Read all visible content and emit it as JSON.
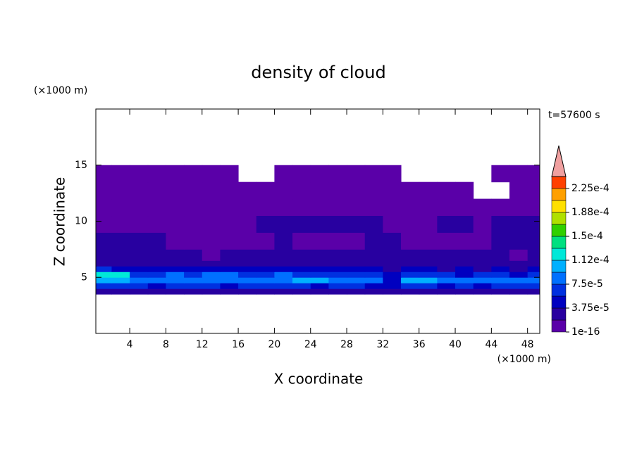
{
  "chart_data": {
    "type": "contour",
    "title": "density of cloud",
    "time_label": "t=57600 s",
    "xlabel": "X coordinate",
    "ylabel": "Z coordinate",
    "x_unit": "(×1000 m)",
    "y_unit": "(×1000 m)",
    "xlim": [
      0.25,
      49.35
    ],
    "ylim": [
      0,
      20
    ],
    "xticks": [
      4,
      8,
      12,
      16,
      20,
      24,
      28,
      32,
      36,
      40,
      44,
      48
    ],
    "yticks": [
      5,
      10,
      15
    ],
    "x_edges": [
      0,
      2,
      4,
      6,
      8,
      10,
      12,
      14,
      16,
      18,
      20,
      22,
      24,
      26,
      28,
      30,
      32,
      34,
      36,
      38,
      40,
      42,
      44,
      46,
      48,
      50
    ],
    "z_edges": [
      3.5,
      4,
      4.5,
      5,
      5.5,
      6,
      6.5,
      7.5,
      9,
      10.5,
      12,
      13.5,
      15
    ],
    "field": [
      [
        2.5e-05,
        2.5e-05,
        2.5e-05,
        2.5e-05,
        2.5e-05,
        2.5e-05,
        2.5e-05,
        2.5e-05,
        2.5e-05,
        2.5e-05,
        2.5e-05,
        2.5e-05,
        2.5e-05,
        2.5e-05,
        2.5e-05,
        2.5e-05,
        2.5e-05,
        2.5e-05,
        2.5e-05,
        2.5e-05,
        2.5e-05,
        2.5e-05,
        2.5e-05,
        2.5e-05,
        2.5e-05
      ],
      [
        6.5e-05,
        6.5e-05,
        6.5e-05,
        4.5e-05,
        6.5e-05,
        6.5e-05,
        6.5e-05,
        4.5e-05,
        6.5e-05,
        6.5e-05,
        6.5e-05,
        6.5e-05,
        4.5e-05,
        6.5e-05,
        6.5e-05,
        4.5e-05,
        4.5e-05,
        6.5e-05,
        6.5e-05,
        4.5e-05,
        6.5e-05,
        4.5e-05,
        6.5e-05,
        6.5e-05,
        6.5e-05
      ],
      [
        0.0001,
        0.0001,
        8.5e-05,
        8.5e-05,
        8.5e-05,
        8.5e-05,
        8.5e-05,
        8.5e-05,
        8.5e-05,
        8.5e-05,
        8.5e-05,
        0.0001,
        0.0001,
        8.5e-05,
        8.5e-05,
        8.5e-05,
        4.5e-05,
        0.0001,
        0.0001,
        8.5e-05,
        8.5e-05,
        8.5e-05,
        8.5e-05,
        8.5e-05,
        8.5e-05
      ],
      [
        0.00012,
        0.00012,
        6.5e-05,
        6.5e-05,
        8.5e-05,
        6.5e-05,
        8.5e-05,
        8.5e-05,
        6.5e-05,
        6.5e-05,
        8.5e-05,
        6.5e-05,
        6.5e-05,
        6.5e-05,
        6.5e-05,
        6.5e-05,
        4.5e-05,
        6.5e-05,
        6.5e-05,
        6.5e-05,
        4.5e-05,
        6.5e-05,
        6.5e-05,
        4.5e-05,
        6.5e-05
      ],
      [
        6.5e-05,
        4.5e-05,
        4.5e-05,
        4.5e-05,
        4.5e-05,
        4.5e-05,
        4.5e-05,
        4.5e-05,
        4.5e-05,
        4.5e-05,
        4.5e-05,
        4.5e-05,
        4.5e-05,
        4.5e-05,
        4.5e-05,
        4.5e-05,
        2.5e-05,
        4.5e-05,
        4.5e-05,
        2.5e-05,
        4.5e-05,
        2.5e-05,
        4.5e-05,
        2.5e-05,
        4.5e-05
      ],
      [
        2.5e-05,
        2.5e-05,
        2.5e-05,
        2.5e-05,
        2.5e-05,
        2.5e-05,
        2.5e-05,
        2.5e-05,
        2.5e-05,
        2.5e-05,
        2.5e-05,
        2.5e-05,
        2.5e-05,
        2.5e-05,
        2.5e-05,
        2.5e-05,
        2.5e-05,
        2.5e-05,
        2.5e-05,
        2.5e-05,
        2.5e-05,
        2.5e-05,
        2.5e-05,
        2.5e-05,
        2.5e-05
      ],
      [
        2.5e-05,
        2.5e-05,
        2.5e-05,
        2.5e-05,
        2.5e-05,
        2.5e-05,
        5e-06,
        2.5e-05,
        2.5e-05,
        2.5e-05,
        2.5e-05,
        2.5e-05,
        2.5e-05,
        2.5e-05,
        2.5e-05,
        2.5e-05,
        2.5e-05,
        2.5e-05,
        2.5e-05,
        2.5e-05,
        2.5e-05,
        2.5e-05,
        2.5e-05,
        5e-06,
        2.5e-05
      ],
      [
        2.5e-05,
        2.5e-05,
        2.5e-05,
        2.5e-05,
        5e-06,
        5e-06,
        5e-06,
        5e-06,
        5e-06,
        5e-06,
        2.5e-05,
        5e-06,
        5e-06,
        5e-06,
        5e-06,
        2.5e-05,
        2.5e-05,
        5e-06,
        5e-06,
        5e-06,
        5e-06,
        5e-06,
        2.5e-05,
        2.5e-05,
        2.5e-05
      ],
      [
        5e-06,
        5e-06,
        5e-06,
        5e-06,
        5e-06,
        5e-06,
        5e-06,
        5e-06,
        5e-06,
        2.5e-05,
        2.5e-05,
        2.5e-05,
        2.5e-05,
        2.5e-05,
        2.5e-05,
        2.5e-05,
        5e-06,
        5e-06,
        5e-06,
        2.5e-05,
        2.5e-05,
        5e-06,
        2.5e-05,
        2.5e-05,
        2.5e-05
      ],
      [
        5e-06,
        5e-06,
        5e-06,
        5e-06,
        5e-06,
        5e-06,
        5e-06,
        5e-06,
        5e-06,
        5e-06,
        5e-06,
        5e-06,
        5e-06,
        5e-06,
        5e-06,
        5e-06,
        5e-06,
        5e-06,
        5e-06,
        5e-06,
        5e-06,
        5e-06,
        5e-06,
        5e-06,
        5e-06
      ],
      [
        5e-06,
        5e-06,
        5e-06,
        5e-06,
        5e-06,
        5e-06,
        5e-06,
        5e-06,
        5e-06,
        5e-06,
        5e-06,
        5e-06,
        5e-06,
        5e-06,
        5e-06,
        5e-06,
        5e-06,
        5e-06,
        5e-06,
        5e-06,
        5e-06,
        null,
        null,
        5e-06,
        5e-06
      ],
      [
        5e-06,
        5e-06,
        5e-06,
        5e-06,
        5e-06,
        5e-06,
        5e-06,
        5e-06,
        null,
        null,
        5e-06,
        5e-06,
        5e-06,
        5e-06,
        5e-06,
        5e-06,
        5e-06,
        null,
        null,
        null,
        null,
        null,
        5e-06,
        5e-06,
        5e-06
      ]
    ],
    "levels": [
      1e-16,
      1.875e-05,
      3.75e-05,
      5.625e-05,
      7.5e-05,
      9.375e-05,
      0.0001125,
      0.00013125,
      0.00015,
      0.00016875,
      0.0001875,
      0.00020625,
      0.000225,
      0.00024375
    ],
    "colors": [
      "#5a00a8",
      "#2800a0",
      "#0000c0",
      "#0030e0",
      "#0070ff",
      "#00b0ff",
      "#00e8d8",
      "#00e080",
      "#30d000",
      "#b0e000",
      "#ffe000",
      "#ffa000",
      "#ff4000"
    ],
    "extend_color": "#f0a0a0",
    "colorbar_ticks": [
      {
        "value": 1e-16,
        "label": "1e-16"
      },
      {
        "value": 3.75e-05,
        "label": "3.75e-5"
      },
      {
        "value": 7.5e-05,
        "label": "7.5e-5"
      },
      {
        "value": 0.0001125,
        "label": "1.12e-4"
      },
      {
        "value": 0.00015,
        "label": "1.5e-4"
      },
      {
        "value": 0.0001875,
        "label": "1.88e-4"
      },
      {
        "value": 0.000225,
        "label": "2.25e-4"
      }
    ]
  }
}
